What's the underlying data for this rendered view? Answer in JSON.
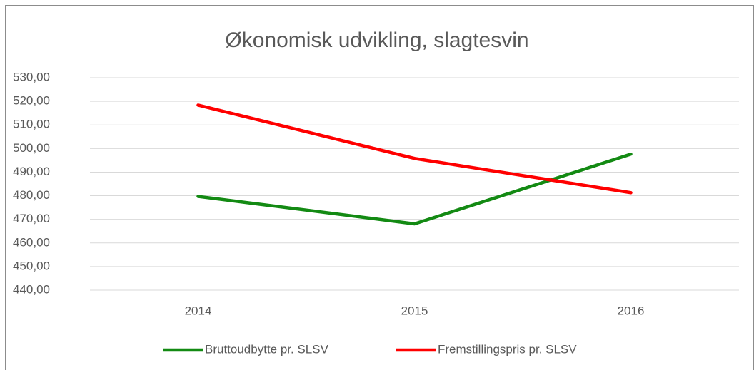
{
  "chart_data": {
    "type": "line",
    "title": "Økonomisk udvikling, slagtesvin",
    "categories": [
      "2014",
      "2015",
      "2016"
    ],
    "series": [
      {
        "name": "Bruttoudbytte pr. SLSV",
        "color": "#138a13",
        "values": [
          479.7,
          468.1,
          497.6
        ]
      },
      {
        "name": "Fremstillingspris pr. SLSV",
        "color": "#ff0000",
        "values": [
          518.4,
          495.8,
          481.3
        ]
      }
    ],
    "ylim": [
      440,
      530
    ],
    "yticks": [
      {
        "value": 440,
        "label": "440,00"
      },
      {
        "value": 450,
        "label": "450,00"
      },
      {
        "value": 460,
        "label": "460,00"
      },
      {
        "value": 470,
        "label": "470,00"
      },
      {
        "value": 480,
        "label": "480,00"
      },
      {
        "value": 490,
        "label": "490,00"
      },
      {
        "value": 500,
        "label": "500,00"
      },
      {
        "value": 510,
        "label": "510,00"
      },
      {
        "value": 520,
        "label": "520,00"
      },
      {
        "value": 530,
        "label": "530,00"
      }
    ],
    "grid": true,
    "legend": "bottom"
  }
}
